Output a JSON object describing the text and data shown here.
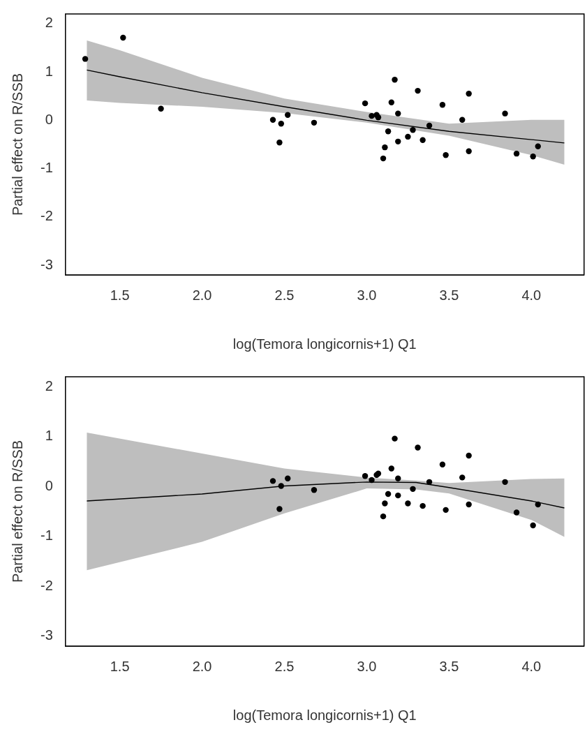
{
  "chart_data": [
    {
      "type": "scatter",
      "xlabel": "log(Temora longicornis+1) Q1",
      "ylabel": "Partial effect on R/SSB",
      "xlim": [
        1.17,
        4.32
      ],
      "ylim": [
        -3.2,
        2.2
      ],
      "xticks": [
        1.5,
        {
          "value": 2,
          "label": "2.0"
        },
        2.5,
        {
          "value": 3,
          "label": "3.0"
        },
        3.5,
        {
          "value": 4,
          "label": "4.0"
        }
      ],
      "yticks": [
        -3,
        -2,
        -1,
        0,
        1,
        2
      ],
      "grid": false,
      "legend": false,
      "line_style": "solid",
      "series": [
        {
          "type": "scatter",
          "marker": "circle",
          "color": "#000000",
          "x": [
            1.29,
            1.52,
            1.75,
            2.43,
            2.48,
            2.47,
            2.52,
            2.68,
            2.99,
            3.03,
            3.06,
            3.07,
            3.17,
            3.15,
            3.19,
            3.13,
            3.11,
            3.1,
            3.19,
            3.25,
            3.28,
            3.31,
            3.34,
            3.38,
            3.46,
            3.48,
            3.58,
            3.62,
            3.62,
            3.84,
            3.91,
            4.01,
            4.04
          ],
          "values": [
            1.27,
            1.71,
            0.24,
            0.01,
            -0.07,
            -0.46,
            0.11,
            -0.05,
            0.35,
            0.09,
            0.11,
            0.06,
            0.84,
            0.37,
            0.14,
            -0.23,
            -0.56,
            -0.79,
            -0.44,
            -0.34,
            -0.2,
            0.61,
            -0.41,
            -0.11,
            0.32,
            -0.72,
            0.01,
            0.55,
            -0.64,
            0.14,
            -0.69,
            -0.75,
            -0.54
          ]
        },
        {
          "type": "line",
          "marker": "none",
          "color": "#000000",
          "x": [
            1.3,
            1.5,
            2.0,
            2.5,
            3.0,
            3.5,
            4.0,
            4.2
          ],
          "values": [
            1.04,
            0.9,
            0.57,
            0.28,
            0.0,
            -0.23,
            -0.4,
            -0.47
          ],
          "lower": [
            0.41,
            0.36,
            0.28,
            0.15,
            -0.05,
            -0.32,
            -0.72,
            -0.92
          ],
          "upper": [
            1.65,
            1.45,
            0.88,
            0.45,
            0.17,
            -0.07,
            0.01,
            0.01
          ]
        }
      ]
    },
    {
      "type": "scatter",
      "xlabel": "log(Temora longicornis+1) Q1",
      "ylabel": "Partial effect on R/SSB",
      "xlim": [
        1.17,
        4.32
      ],
      "ylim": [
        -3.2,
        2.2
      ],
      "xticks": [
        1.5,
        {
          "value": 2,
          "label": "2.0"
        },
        2.5,
        {
          "value": 3,
          "label": "3.0"
        },
        3.5,
        {
          "value": 4,
          "label": "4.0"
        }
      ],
      "yticks": [
        -3,
        -2,
        -1,
        0,
        1,
        2
      ],
      "grid": false,
      "legend": false,
      "line_style": "solid",
      "series": [
        {
          "type": "scatter",
          "marker": "circle",
          "color": "#000000",
          "x": [
            2.43,
            2.48,
            2.47,
            2.52,
            2.68,
            2.99,
            3.03,
            3.06,
            3.07,
            3.17,
            3.15,
            3.19,
            3.13,
            3.11,
            3.1,
            3.19,
            3.25,
            3.28,
            3.31,
            3.34,
            3.38,
            3.46,
            3.48,
            3.58,
            3.62,
            3.62,
            3.84,
            3.91,
            4.01,
            4.04
          ],
          "values": [
            0.11,
            0.01,
            -0.45,
            0.16,
            -0.07,
            0.21,
            0.13,
            0.23,
            0.26,
            0.96,
            0.36,
            0.16,
            -0.15,
            -0.34,
            -0.6,
            -0.18,
            -0.34,
            -0.05,
            0.78,
            -0.39,
            0.09,
            0.44,
            -0.47,
            0.18,
            0.62,
            -0.36,
            0.09,
            -0.52,
            -0.78,
            -0.36
          ]
        },
        {
          "type": "line",
          "marker": "none",
          "color": "#000000",
          "x": [
            1.3,
            2.0,
            2.5,
            3.0,
            3.3,
            3.5,
            4.0,
            4.2
          ],
          "values": [
            -0.29,
            -0.15,
            0.01,
            0.09,
            0.08,
            -0.02,
            -0.29,
            -0.43
          ],
          "lower": [
            -1.68,
            -1.11,
            -0.54,
            -0.04,
            -0.06,
            -0.14,
            -0.67,
            -1.01
          ],
          "upper": [
            1.08,
            0.66,
            0.36,
            0.18,
            0.12,
            0.07,
            0.15,
            0.16
          ]
        }
      ]
    }
  ]
}
